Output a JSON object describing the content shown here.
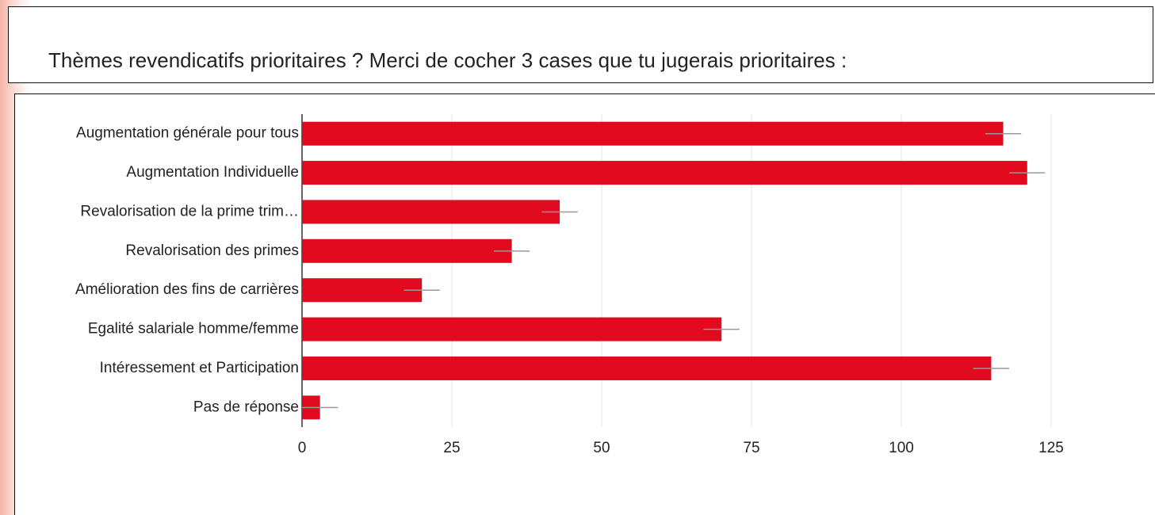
{
  "chart_data": {
    "type": "hbar",
    "title": "Thèmes revendicatifs prioritaires ? Merci de cocher 3 cases que tu jugerais prioritaires :",
    "categories": [
      "Augmentation générale pour tous",
      "Augmentation Individuelle",
      "Revalorisation de la prime trim…",
      "Revalorisation des primes",
      "Amélioration des fins de carrières",
      "Egalité salariale homme/femme",
      "Intéressement et Participation",
      "Pas de réponse"
    ],
    "values": [
      117,
      121,
      43,
      35,
      20,
      70,
      115,
      3
    ],
    "errors": [
      3,
      3,
      3,
      3,
      3,
      3,
      3,
      3
    ],
    "color": "#e10a1e",
    "error_color": "#999999",
    "xlim": [
      0,
      125
    ],
    "xticks": [
      0,
      25,
      50,
      75,
      100,
      125
    ],
    "grid": true
  }
}
